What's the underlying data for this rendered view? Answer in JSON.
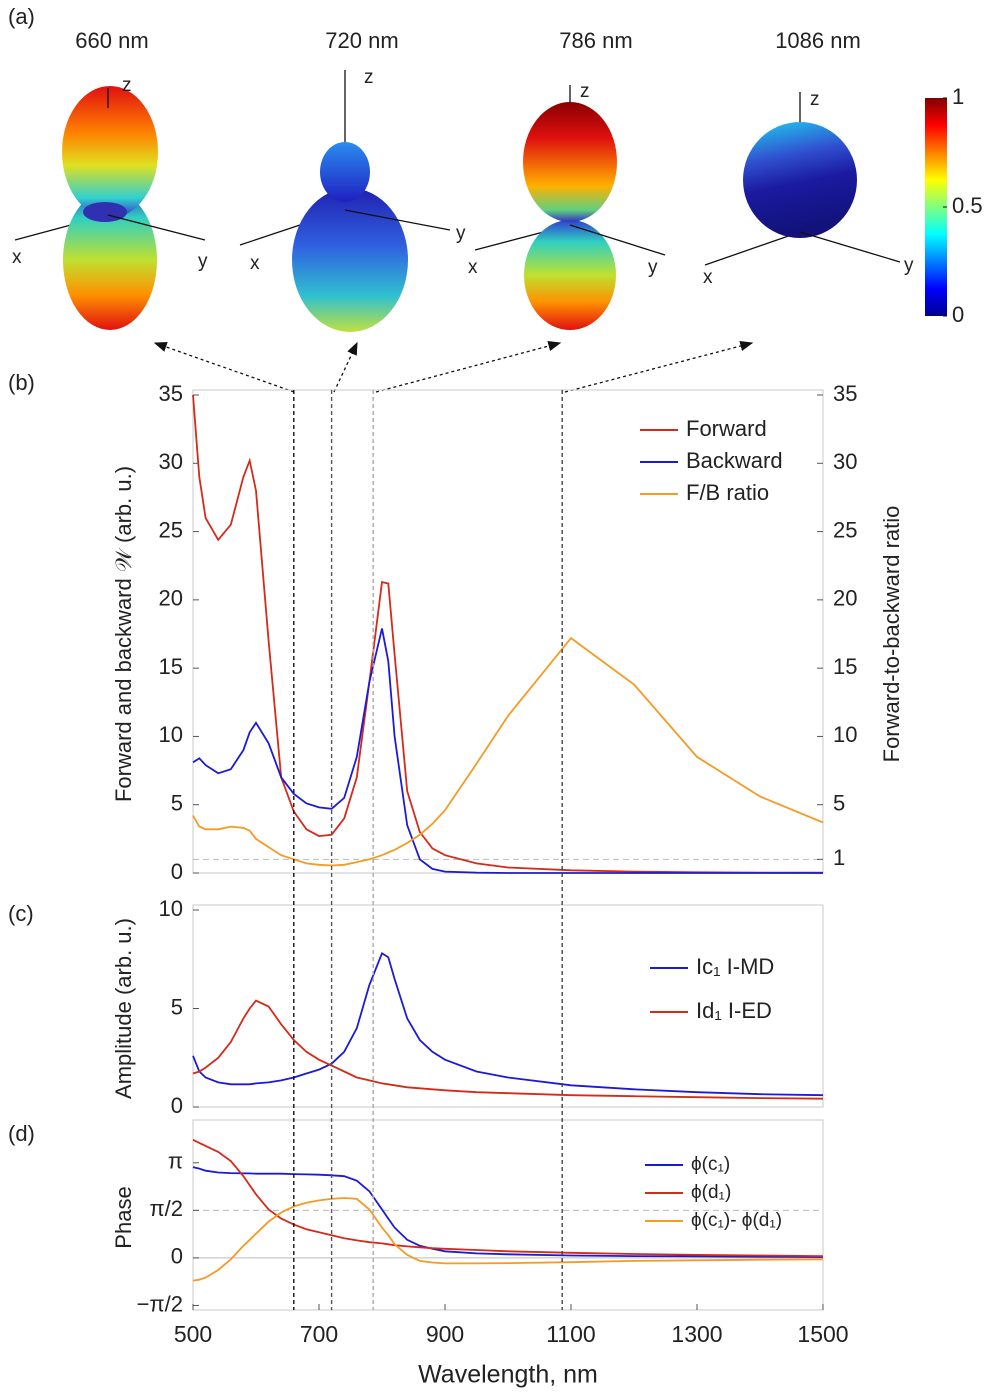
{
  "panel_labels": [
    "(a)",
    "(b)",
    "(c)",
    "(d)"
  ],
  "patterns": {
    "titles": [
      "660 nm",
      "720 nm",
      "786 nm",
      "1086 nm"
    ],
    "axis_names": [
      "x",
      "y",
      "z"
    ],
    "wavelengths": [
      660,
      720,
      786,
      1086
    ],
    "colorbar": {
      "lim": [
        0,
        1
      ],
      "ticks": [
        0,
        0.5,
        1
      ]
    }
  },
  "chart_data": [
    {
      "type": "line",
      "ylabel": "Forward and backward 𝒲  (arb. u.)",
      "y2label": "Forward-to-backward ratio",
      "x": [
        500,
        510,
        520,
        540,
        560,
        580,
        590,
        600,
        620,
        640,
        660,
        680,
        700,
        720,
        740,
        760,
        780,
        800,
        810,
        820,
        840,
        860,
        880,
        900,
        950,
        1000,
        1100,
        1200,
        1300,
        1400,
        1500
      ],
      "xlim": [
        500,
        1500
      ],
      "ylim": [
        0,
        35
      ],
      "yticks": [
        0,
        5,
        10,
        15,
        20,
        25,
        30,
        35
      ],
      "y2lim": [
        0,
        35
      ],
      "y2ticks": [
        1,
        5,
        10,
        15,
        20,
        25,
        30,
        35
      ],
      "hlines": [
        {
          "value": 1,
          "axis": "y2"
        }
      ],
      "series": [
        {
          "name": "Forward",
          "color": "#d42a1a",
          "values": [
            35,
            29,
            26,
            24.4,
            25.5,
            29,
            30.2,
            28,
            17,
            7,
            4.5,
            3.2,
            2.7,
            2.8,
            4,
            7,
            14,
            21.3,
            21.2,
            16,
            6,
            3,
            1.8,
            1.3,
            0.7,
            0.4,
            0.2,
            0.1,
            0.05,
            0.03,
            0.02
          ]
        },
        {
          "name": "Backward",
          "color": "#1a1ad8",
          "values": [
            8.1,
            8.4,
            7.9,
            7.3,
            7.6,
            9,
            10.3,
            11,
            9.5,
            7,
            5.8,
            5.1,
            4.8,
            4.7,
            5.5,
            8.5,
            14,
            17.9,
            15.5,
            10,
            3.5,
            1,
            0.3,
            0.1,
            0.02,
            0,
            0,
            0,
            0,
            0,
            0
          ]
        },
        {
          "name": "F/B ratio",
          "color": "#f59a23",
          "axis": "y2",
          "values": [
            4.2,
            3.4,
            3.2,
            3.2,
            3.4,
            3.3,
            3.1,
            2.5,
            1.9,
            1.3,
            1,
            0.7,
            0.6,
            0.55,
            0.6,
            0.8,
            1,
            1.3,
            1.5,
            1.7,
            2.2,
            2.8,
            3.6,
            4.6,
            8,
            11.5,
            17.2,
            13.8,
            8.5,
            5.6,
            3.7
          ]
        }
      ]
    },
    {
      "type": "line",
      "ylabel": "Amplitude (arb. u.)",
      "x": [
        500,
        510,
        520,
        540,
        560,
        580,
        590,
        600,
        620,
        640,
        660,
        680,
        700,
        720,
        740,
        760,
        780,
        800,
        810,
        820,
        840,
        860,
        880,
        900,
        950,
        1000,
        1100,
        1200,
        1300,
        1400,
        1500
      ],
      "xlim": [
        500,
        1500
      ],
      "ylim": [
        0,
        10
      ],
      "yticks": [
        0,
        5,
        10
      ],
      "series": [
        {
          "name": "Ic₁ I-MD",
          "color": "#1a1ad8",
          "values": [
            2.6,
            1.8,
            1.5,
            1.25,
            1.15,
            1.15,
            1.15,
            1.2,
            1.25,
            1.35,
            1.5,
            1.7,
            1.9,
            2.2,
            2.8,
            4,
            6.2,
            7.8,
            7.6,
            6.5,
            4.5,
            3.4,
            2.8,
            2.4,
            1.8,
            1.5,
            1.1,
            0.9,
            0.75,
            0.65,
            0.6
          ]
        },
        {
          "name": "Id₁ I-ED",
          "color": "#d42a1a",
          "values": [
            1.7,
            1.8,
            2,
            2.5,
            3.3,
            4.5,
            5,
            5.4,
            5.1,
            4.2,
            3.4,
            2.8,
            2.4,
            2.1,
            1.8,
            1.5,
            1.35,
            1.2,
            1.15,
            1.1,
            1,
            0.95,
            0.9,
            0.85,
            0.75,
            0.7,
            0.6,
            0.55,
            0.5,
            0.45,
            0.42
          ]
        }
      ]
    },
    {
      "type": "line",
      "ylabel": "Phase",
      "xlabel": "Wavelength, nm",
      "x": [
        500,
        510,
        520,
        540,
        560,
        580,
        590,
        600,
        620,
        640,
        660,
        680,
        700,
        720,
        740,
        760,
        780,
        800,
        810,
        820,
        840,
        860,
        880,
        900,
        950,
        1000,
        1100,
        1200,
        1300,
        1400,
        1500
      ],
      "xlim": [
        500,
        1500
      ],
      "xticks": [
        500,
        700,
        900,
        1100,
        1300,
        1500
      ],
      "ylim": [
        -1.72,
        4.39
      ],
      "yticks": [
        {
          "value": -1.5708,
          "label": "−π/2"
        },
        0,
        {
          "value": 1.5708,
          "label": "π/2"
        },
        {
          "value": 3.1416,
          "label": "π"
        }
      ],
      "hlines": [
        {
          "value": 0
        },
        {
          "value": 1.5708,
          "dashed": true
        }
      ],
      "series": [
        {
          "name": "ϕ(c₁)",
          "color": "#1a1ad8",
          "values": [
            3.0,
            2.95,
            2.88,
            2.82,
            2.8,
            2.79,
            2.79,
            2.78,
            2.78,
            2.78,
            2.77,
            2.76,
            2.75,
            2.73,
            2.7,
            2.55,
            2.2,
            1.6,
            1.3,
            1.0,
            0.6,
            0.4,
            0.3,
            0.22,
            0.15,
            0.12,
            0.08,
            0.06,
            0.05,
            0.04,
            0.03
          ]
        },
        {
          "name": "ϕ(d₁)",
          "color": "#d42a1a",
          "values": [
            3.9,
            3.8,
            3.7,
            3.5,
            3.2,
            2.7,
            2.4,
            2.1,
            1.6,
            1.3,
            1.1,
            0.95,
            0.85,
            0.75,
            0.65,
            0.58,
            0.52,
            0.48,
            0.45,
            0.42,
            0.38,
            0.35,
            0.32,
            0.3,
            0.26,
            0.22,
            0.17,
            0.13,
            0.1,
            0.08,
            0.06
          ]
        },
        {
          "name": "ϕ(c₁)- ϕ(d₁)",
          "color": "#f59a23",
          "values": [
            -0.75,
            -0.72,
            -0.65,
            -0.4,
            -0.05,
            0.4,
            0.6,
            0.8,
            1.2,
            1.5,
            1.7,
            1.82,
            1.9,
            1.95,
            1.98,
            1.95,
            1.6,
            1.0,
            0.75,
            0.45,
            0.1,
            -0.1,
            -0.15,
            -0.18,
            -0.18,
            -0.17,
            -0.14,
            -0.1,
            -0.08,
            -0.06,
            -0.05
          ]
        }
      ]
    }
  ]
}
